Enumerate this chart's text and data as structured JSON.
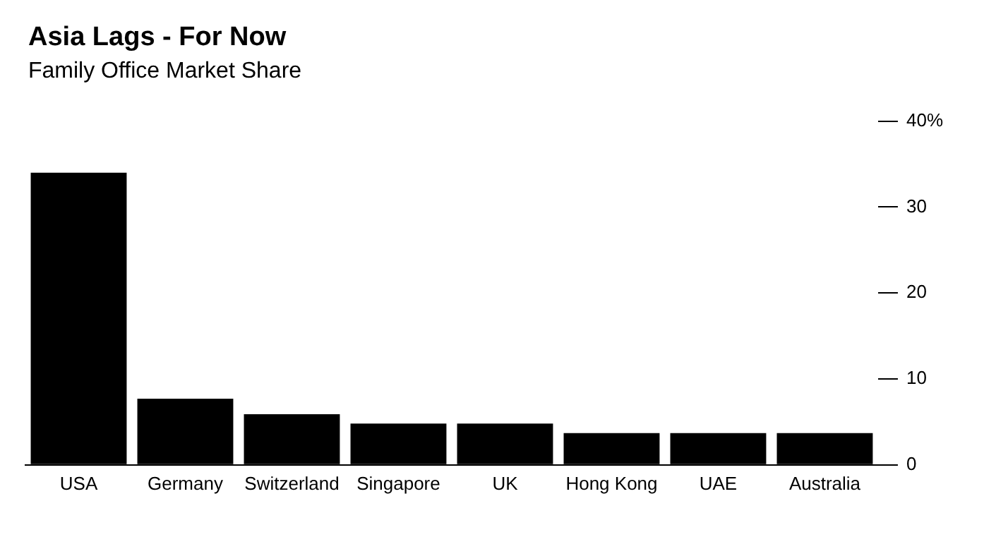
{
  "chart_data": {
    "type": "bar",
    "title": "Asia Lags - For Now",
    "subtitle": "Family Office Market Share",
    "categories": [
      "USA",
      "Germany",
      "Switzerland",
      "Singapore",
      "UK",
      "Hong Kong",
      "UAE",
      "Australia"
    ],
    "values": [
      34,
      7.7,
      5.9,
      4.8,
      4.8,
      3.7,
      3.7,
      3.7
    ],
    "color": "#000000",
    "ylim": [
      0,
      40
    ],
    "yticks": [
      0,
      10,
      20,
      30,
      {
        "value": 40,
        "label": "40%"
      }
    ],
    "grid": false,
    "legend": false
  }
}
